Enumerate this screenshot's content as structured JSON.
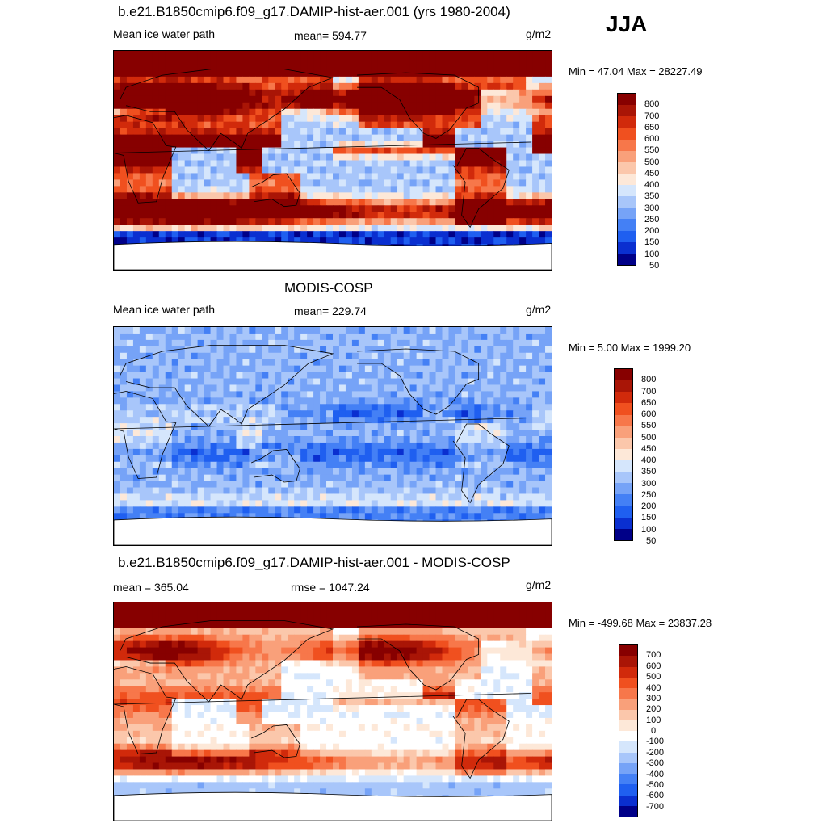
{
  "season": "JJA",
  "panels": [
    {
      "title": "b.e21.B1850cmip6.f09_g17.DAMIP-hist-aer.001 (yrs 1980-2004)",
      "left_label": "Mean ice water path",
      "center_label": "mean= 594.77",
      "unit": "g/m2",
      "minmax": "Min =  47.04 Max = 28227.49",
      "map_field": "model",
      "colorbar": {
        "colors": [
          "#000088",
          "#0a2fd0",
          "#1f5ff0",
          "#4480f5",
          "#76a3f7",
          "#a8c6fa",
          "#d5e6fc",
          "#fde8d8",
          "#fbc7ab",
          "#f9a07a",
          "#f7774a",
          "#f0501f",
          "#d12a0b",
          "#a91506",
          "#870000"
        ],
        "labels": [
          "50",
          "100",
          "150",
          "200",
          "250",
          "300",
          "350",
          "400",
          "450",
          "500",
          "550",
          "600",
          "650",
          "700",
          "800"
        ]
      }
    },
    {
      "title": "MODIS-COSP",
      "left_label": "Mean ice water path",
      "center_label": "mean= 229.74",
      "unit": "g/m2",
      "minmax": "Min =   5.00 Max = 1999.20",
      "map_field": "obs",
      "colorbar": {
        "colors": [
          "#000088",
          "#0a2fd0",
          "#1f5ff0",
          "#4480f5",
          "#76a3f7",
          "#a8c6fa",
          "#d5e6fc",
          "#fde8d8",
          "#fbc7ab",
          "#f9a07a",
          "#f7774a",
          "#f0501f",
          "#d12a0b",
          "#a91506",
          "#870000"
        ],
        "labels": [
          "50",
          "100",
          "150",
          "200",
          "250",
          "300",
          "350",
          "400",
          "450",
          "500",
          "550",
          "600",
          "650",
          "700",
          "800"
        ]
      }
    },
    {
      "title": "b.e21.B1850cmip6.f09_g17.DAMIP-hist-aer.001 - MODIS-COSP",
      "left_label": "mean = 365.04",
      "center_label": "rmse = 1047.24",
      "unit": "g/m2",
      "minmax": "Min = -499.68 Max = 23837.28",
      "map_field": "diff",
      "colorbar": {
        "colors": [
          "#000088",
          "#0a2fd0",
          "#1f5ff0",
          "#4480f5",
          "#76a3f7",
          "#a8c6fa",
          "#d5e6fc",
          "#ffffff",
          "#fde8d8",
          "#fbc7ab",
          "#f9a07a",
          "#f7774a",
          "#f0501f",
          "#d12a0b",
          "#a91506",
          "#870000"
        ],
        "labels": [
          "-700",
          "-600",
          "-500",
          "-400",
          "-300",
          "-200",
          "-100",
          "0",
          "100",
          "200",
          "300",
          "400",
          "500",
          "600",
          "700"
        ]
      }
    }
  ]
}
